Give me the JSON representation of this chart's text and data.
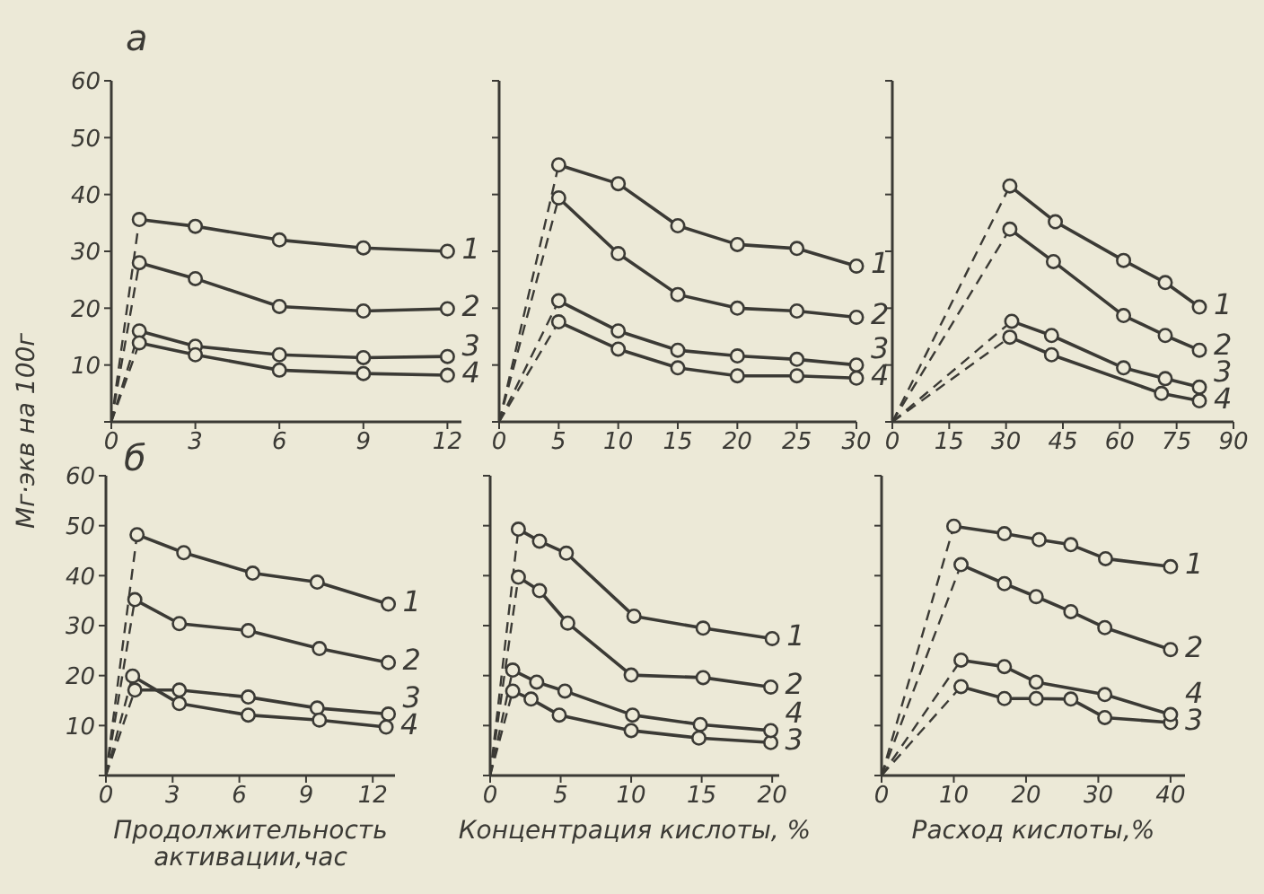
{
  "chart_data": [
    {
      "type": "line",
      "title": "а",
      "ylabel": "Мг·экв на 100г",
      "xlim": [
        0,
        12.5
      ],
      "xticks": [
        0,
        3,
        6,
        9,
        12
      ],
      "ylim": [
        0,
        60
      ],
      "yticks": [
        {
          "value": 0,
          "label": null
        },
        10,
        20,
        30,
        40,
        50,
        60
      ],
      "series": [
        {
          "name": "1",
          "color": "#3b3a35",
          "marker": "circle",
          "x": [
            1,
            3,
            6,
            9,
            12
          ],
          "values": [
            35.6,
            34.4,
            32,
            30.6,
            30
          ]
        },
        {
          "name": "2",
          "color": "#3b3a35",
          "marker": "circle",
          "x": [
            1,
            3,
            6,
            9,
            12
          ],
          "values": [
            28,
            25.2,
            20.3,
            19.5,
            19.9
          ]
        },
        {
          "name": "3",
          "color": "#3b3a35",
          "marker": "circle",
          "x": [
            1,
            3,
            6,
            9,
            12
          ],
          "values": [
            16,
            13.3,
            11.8,
            11.3,
            11.5
          ]
        },
        {
          "name": "4",
          "color": "#3b3a35",
          "marker": "circle",
          "x": [
            1,
            3,
            6,
            9,
            12
          ],
          "values": [
            13.9,
            11.8,
            9.1,
            8.5,
            8.2
          ]
        },
        {
          "color": "#3b3a35",
          "marker": "none",
          "line_style": "dashed",
          "x": [
            0,
            1
          ],
          "values": [
            0,
            35.6
          ]
        },
        {
          "color": "#3b3a35",
          "marker": "none",
          "line_style": "dashed",
          "x": [
            0,
            1
          ],
          "values": [
            0,
            28
          ]
        },
        {
          "color": "#3b3a35",
          "marker": "none",
          "line_style": "dashed",
          "x": [
            0,
            1
          ],
          "values": [
            0,
            16
          ]
        },
        {
          "color": "#3b3a35",
          "marker": "none",
          "line_style": "dashed",
          "x": [
            0,
            1
          ],
          "values": [
            0,
            13.9
          ]
        }
      ]
    },
    {
      "type": "line",
      "tick_labels": "x",
      "xlim": [
        0,
        30
      ],
      "xticks": [
        0,
        5,
        10,
        15,
        20,
        25,
        30
      ],
      "ylim": [
        0,
        60
      ],
      "yticks": [
        {
          "value": 0,
          "label": null
        },
        {
          "value": 10,
          "label": null
        },
        {
          "value": 20,
          "label": null
        },
        {
          "value": 30,
          "label": null
        },
        {
          "value": 40,
          "label": null
        },
        {
          "value": 50,
          "label": null
        },
        {
          "value": 60,
          "label": null
        }
      ],
      "series": [
        {
          "name": "1",
          "color": "#3b3a35",
          "marker": "circle",
          "x": [
            5,
            10,
            15,
            20,
            25,
            30
          ],
          "values": [
            45.2,
            41.9,
            34.5,
            31.2,
            30.5,
            27.4
          ]
        },
        {
          "name": "2",
          "color": "#3b3a35",
          "marker": "circle",
          "x": [
            5,
            10,
            15,
            20,
            25,
            30
          ],
          "values": [
            39.4,
            29.6,
            22.4,
            20,
            19.5,
            18.4
          ]
        },
        {
          "name": "3",
          "color": "#3b3a35",
          "marker": "circle",
          "x": [
            5,
            10,
            15,
            20,
            25,
            30
          ],
          "values": [
            21.3,
            16,
            12.6,
            11.6,
            11,
            10
          ]
        },
        {
          "name": "4",
          "color": "#3b3a35",
          "marker": "circle",
          "x": [
            5,
            10,
            15,
            20,
            25,
            30
          ],
          "values": [
            17.6,
            12.8,
            9.5,
            8.1,
            8.1,
            7.7
          ]
        },
        {
          "color": "#3b3a35",
          "marker": "none",
          "line_style": "dashed",
          "x": [
            0,
            5
          ],
          "values": [
            0,
            45.2
          ]
        },
        {
          "color": "#3b3a35",
          "marker": "none",
          "line_style": "dashed",
          "x": [
            0,
            5
          ],
          "values": [
            0,
            39.4
          ]
        },
        {
          "color": "#3b3a35",
          "marker": "none",
          "line_style": "dashed",
          "x": [
            0,
            5
          ],
          "values": [
            0,
            21.3
          ]
        },
        {
          "color": "#3b3a35",
          "marker": "none",
          "line_style": "dashed",
          "x": [
            0,
            5
          ],
          "values": [
            0,
            17.6
          ]
        }
      ]
    },
    {
      "type": "line",
      "tick_labels": "x",
      "xlim": [
        0,
        90
      ],
      "xticks": [
        0,
        15,
        30,
        45,
        60,
        75,
        90
      ],
      "ylim": [
        0,
        60
      ],
      "yticks": [
        {
          "value": 0,
          "label": null
        },
        {
          "value": 10,
          "label": null
        },
        {
          "value": 20,
          "label": null
        },
        {
          "value": 30,
          "label": null
        },
        {
          "value": 40,
          "label": null
        },
        {
          "value": 50,
          "label": null
        },
        {
          "value": 60,
          "label": null
        }
      ],
      "series": [
        {
          "name": "1",
          "color": "#3b3a35",
          "marker": "circle",
          "x": [
            31,
            43,
            61,
            72,
            81
          ],
          "values": [
            41.5,
            35.2,
            28.4,
            24.5,
            20.2
          ]
        },
        {
          "name": "2",
          "color": "#3b3a35",
          "marker": "circle",
          "x": [
            31,
            42.5,
            61,
            72,
            81
          ],
          "values": [
            33.9,
            28.2,
            18.7,
            15.2,
            12.6
          ]
        },
        {
          "name": "3",
          "color": "#3b3a35",
          "marker": "circle",
          "x": [
            31.5,
            42,
            61,
            72,
            81
          ],
          "values": [
            17.7,
            15.2,
            9.5,
            7.6,
            6.1
          ]
        },
        {
          "name": "4",
          "color": "#3b3a35",
          "marker": "circle",
          "x": [
            31,
            42,
            71,
            81
          ],
          "values": [
            14.9,
            11.8,
            5,
            3.7
          ]
        },
        {
          "color": "#3b3a35",
          "marker": "none",
          "line_style": "dashed",
          "x": [
            0,
            31
          ],
          "values": [
            0,
            41.5
          ]
        },
        {
          "color": "#3b3a35",
          "marker": "none",
          "line_style": "dashed",
          "x": [
            0,
            31
          ],
          "values": [
            0,
            33.9
          ]
        },
        {
          "color": "#3b3a35",
          "marker": "none",
          "line_style": "dashed",
          "x": [
            0,
            31.5
          ],
          "values": [
            0,
            17.7
          ]
        },
        {
          "color": "#3b3a35",
          "marker": "none",
          "line_style": "dashed",
          "x": [
            0,
            31
          ],
          "values": [
            0,
            14.9
          ]
        }
      ]
    },
    {
      "type": "line",
      "title": "б",
      "xlabel": "Продолжительность активации,час",
      "xlim": [
        0,
        13
      ],
      "xticks": [
        0,
        3,
        6,
        9,
        12
      ],
      "ylim": [
        0,
        60
      ],
      "yticks": [
        {
          "value": 0,
          "label": null
        },
        10,
        20,
        30,
        40,
        50,
        60
      ],
      "series": [
        {
          "name": "1",
          "color": "#3b3a35",
          "marker": "circle",
          "x": [
            1.4,
            3.5,
            6.6,
            9.5,
            12.7
          ],
          "values": [
            48.2,
            44.6,
            40.5,
            38.7,
            34.3
          ]
        },
        {
          "name": "2",
          "color": "#3b3a35",
          "marker": "circle",
          "x": [
            1.3,
            3.3,
            6.4,
            9.6,
            12.7
          ],
          "values": [
            35.2,
            30.4,
            29,
            25.4,
            22.6
          ]
        },
        {
          "name": "3",
          "color": "#3b3a35",
          "marker": "circle",
          "x": [
            1.3,
            3.3,
            6.4,
            9.5,
            12.7
          ],
          "values": [
            17.1,
            17.1,
            15.7,
            13.5,
            12.3
          ]
        },
        {
          "name": "4",
          "color": "#3b3a35",
          "marker": "circle",
          "x": [
            1.2,
            3.3,
            6.4,
            9.6,
            12.6
          ],
          "values": [
            19.9,
            14.4,
            12.1,
            11.1,
            9.7
          ]
        },
        {
          "color": "#3b3a35",
          "marker": "none",
          "line_style": "dashed",
          "x": [
            0,
            1.4
          ],
          "values": [
            0,
            48.2
          ]
        },
        {
          "color": "#3b3a35",
          "marker": "none",
          "line_style": "dashed",
          "x": [
            0,
            1.3
          ],
          "values": [
            0,
            35.2
          ]
        },
        {
          "color": "#3b3a35",
          "marker": "none",
          "line_style": "dashed",
          "x": [
            0,
            1.3
          ],
          "values": [
            0,
            17.1
          ]
        },
        {
          "color": "#3b3a35",
          "marker": "none",
          "line_style": "dashed",
          "x": [
            0,
            1.2
          ],
          "values": [
            0,
            19.9
          ]
        }
      ]
    },
    {
      "type": "line",
      "tick_labels": "x",
      "xlabel": "Концентрация кислоты, %",
      "xlim": [
        0,
        20.5
      ],
      "xticks": [
        0,
        5,
        10,
        15,
        20
      ],
      "ylim": [
        0,
        60
      ],
      "yticks": [
        {
          "value": 0,
          "label": null
        },
        {
          "value": 10,
          "label": null
        },
        {
          "value": 20,
          "label": null
        },
        {
          "value": 30,
          "label": null
        },
        {
          "value": 40,
          "label": null
        },
        {
          "value": 50,
          "label": null
        },
        {
          "value": 60,
          "label": null
        }
      ],
      "series": [
        {
          "name": "1",
          "color": "#3b3a35",
          "marker": "circle",
          "x": [
            2,
            3.5,
            5.4,
            10.2,
            15.1,
            20
          ],
          "values": [
            49.3,
            46.9,
            44.5,
            31.9,
            29.5,
            27.4
          ]
        },
        {
          "name": "2",
          "color": "#3b3a35",
          "marker": "circle",
          "x": [
            2,
            3.5,
            5.5,
            10,
            15.1,
            19.9
          ],
          "values": [
            39.7,
            37,
            30.5,
            20.1,
            19.6,
            17.7
          ]
        },
        {
          "name": "3",
          "color": "#3b3a35",
          "marker": "circle",
          "x": [
            1.6,
            2.9,
            4.9,
            10,
            14.8,
            19.9
          ],
          "values": [
            16.9,
            15.3,
            12.1,
            9,
            7.5,
            6.6
          ]
        },
        {
          "name": "4",
          "color": "#3b3a35",
          "marker": "circle",
          "x": [
            1.6,
            3.3,
            5.3,
            10.1,
            14.9,
            19.9
          ],
          "values": [
            21.1,
            18.7,
            16.9,
            12.1,
            10.2,
            9
          ]
        },
        {
          "color": "#3b3a35",
          "marker": "none",
          "line_style": "dashed",
          "x": [
            0,
            2
          ],
          "values": [
            0,
            49.3
          ]
        },
        {
          "color": "#3b3a35",
          "marker": "none",
          "line_style": "dashed",
          "x": [
            0,
            2
          ],
          "values": [
            0,
            39.7
          ]
        },
        {
          "color": "#3b3a35",
          "marker": "none",
          "line_style": "dashed",
          "x": [
            0,
            1.6
          ],
          "values": [
            0,
            16.9
          ]
        },
        {
          "color": "#3b3a35",
          "marker": "none",
          "line_style": "dashed",
          "x": [
            0,
            1.6
          ],
          "values": [
            0,
            21.1
          ]
        }
      ]
    },
    {
      "type": "line",
      "tick_labels": "x",
      "xlabel": "Расход кислоты,%",
      "xlim": [
        0,
        42
      ],
      "xticks": [
        0,
        10,
        20,
        30,
        40
      ],
      "ylim": [
        0,
        60
      ],
      "yticks": [
        {
          "value": 0,
          "label": null
        },
        {
          "value": 10,
          "label": null
        },
        {
          "value": 20,
          "label": null
        },
        {
          "value": 30,
          "label": null
        },
        {
          "value": 40,
          "label": null
        },
        {
          "value": 50,
          "label": null
        },
        {
          "value": 60,
          "label": null
        }
      ],
      "series": [
        {
          "name": "1",
          "color": "#3b3a35",
          "marker": "circle",
          "x": [
            10,
            17,
            21.8,
            26.2,
            31,
            40
          ],
          "values": [
            49.9,
            48.4,
            47.2,
            46.2,
            43.4,
            41.8
          ]
        },
        {
          "name": "2",
          "color": "#3b3a35",
          "marker": "circle",
          "x": [
            11,
            17,
            21.4,
            26.2,
            30.9,
            40
          ],
          "values": [
            42.2,
            38.4,
            35.8,
            32.8,
            29.6,
            25.2
          ]
        },
        {
          "name": "3",
          "color": "#3b3a35",
          "marker": "circle",
          "x": [
            11,
            17,
            21.4,
            26.2,
            30.9,
            40
          ],
          "values": [
            17.8,
            15.4,
            15.4,
            15.3,
            11.6,
            10.6
          ]
        },
        {
          "name": "4",
          "color": "#3b3a35",
          "marker": "circle",
          "x": [
            11,
            17,
            21.4,
            30.9,
            40
          ],
          "values": [
            23.1,
            21.8,
            18.7,
            16.2,
            12.2
          ]
        },
        {
          "color": "#3b3a35",
          "marker": "none",
          "line_style": "dashed",
          "x": [
            0,
            10
          ],
          "values": [
            0,
            49.9
          ]
        },
        {
          "color": "#3b3a35",
          "marker": "none",
          "line_style": "dashed",
          "x": [
            0,
            11
          ],
          "values": [
            0,
            42.2
          ]
        },
        {
          "color": "#3b3a35",
          "marker": "none",
          "line_style": "dashed",
          "x": [
            0,
            11
          ],
          "values": [
            0,
            17.8
          ]
        },
        {
          "color": "#3b3a35",
          "marker": "none",
          "line_style": "dashed",
          "x": [
            0,
            11
          ],
          "values": [
            0,
            23.1
          ]
        }
      ]
    }
  ]
}
